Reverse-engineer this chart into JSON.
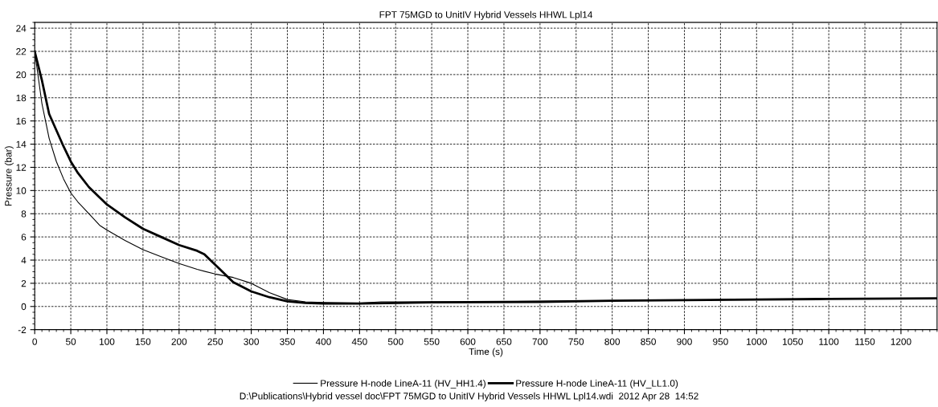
{
  "chart_data": {
    "type": "line",
    "title": "FPT 75MGD to UnitIV Hybrid Vessels HHWL Lpl14",
    "xlabel": "Time (s)",
    "ylabel": "Pressure (bar)",
    "series": [
      {
        "name": "Pressure H-node LineA-11 (HV_HH1.4)",
        "color": "#000000",
        "x": [
          0,
          10,
          20,
          30,
          40,
          50,
          60,
          75,
          90,
          100,
          125,
          150,
          175,
          200,
          225,
          250,
          275,
          300,
          325,
          350,
          375,
          400,
          450,
          480,
          600,
          700,
          800,
          900,
          1000,
          1100,
          1250
        ],
        "values": [
          22,
          17.5,
          14.5,
          12.5,
          11,
          9.8,
          9,
          8,
          7,
          6.6,
          5.7,
          4.9,
          4.3,
          3.7,
          3.2,
          2.8,
          2.5,
          2.0,
          1.2,
          0.6,
          0.4,
          0.35,
          0.3,
          0.4,
          0.4,
          0.45,
          0.5,
          0.55,
          0.6,
          0.65,
          0.7
        ]
      },
      {
        "name": "Pressure H-node LineA-11 (HV_LL1.0)",
        "color": "#000000",
        "x": [
          0,
          10,
          20,
          30,
          40,
          50,
          60,
          75,
          100,
          125,
          150,
          175,
          200,
          225,
          235,
          250,
          275,
          300,
          325,
          350,
          375,
          400,
          450,
          550,
          700,
          800,
          900,
          1000,
          1100,
          1250
        ],
        "values": [
          22,
          19.5,
          16.6,
          15.2,
          13.8,
          12.5,
          11.5,
          10.3,
          8.8,
          7.7,
          6.7,
          6.0,
          5.3,
          4.8,
          4.5,
          3.6,
          2.1,
          1.3,
          0.8,
          0.45,
          0.3,
          0.25,
          0.25,
          0.35,
          0.4,
          0.5,
          0.55,
          0.6,
          0.65,
          0.7
        ]
      }
    ],
    "xlim": [
      0,
      1250
    ],
    "xticks": [
      0,
      50,
      100,
      150,
      200,
      250,
      300,
      350,
      400,
      450,
      500,
      550,
      600,
      650,
      700,
      750,
      800,
      850,
      900,
      950,
      1000,
      1050,
      1100,
      1150,
      1200
    ],
    "ylim": [
      -2,
      24.5
    ],
    "yticks": [
      -2,
      0,
      2,
      4,
      6,
      8,
      10,
      12,
      14,
      16,
      18,
      20,
      22,
      24
    ],
    "grid": true,
    "legend": "bottom",
    "line_style": "solid",
    "marker": "none",
    "annotations": [
      "D:\\Publications\\Hybrid vessel doc\\FPT 75MGD to UnitIV Hybrid Vessels HHWL Lpl14.wdi  2012 Apr 28  14:52"
    ]
  }
}
